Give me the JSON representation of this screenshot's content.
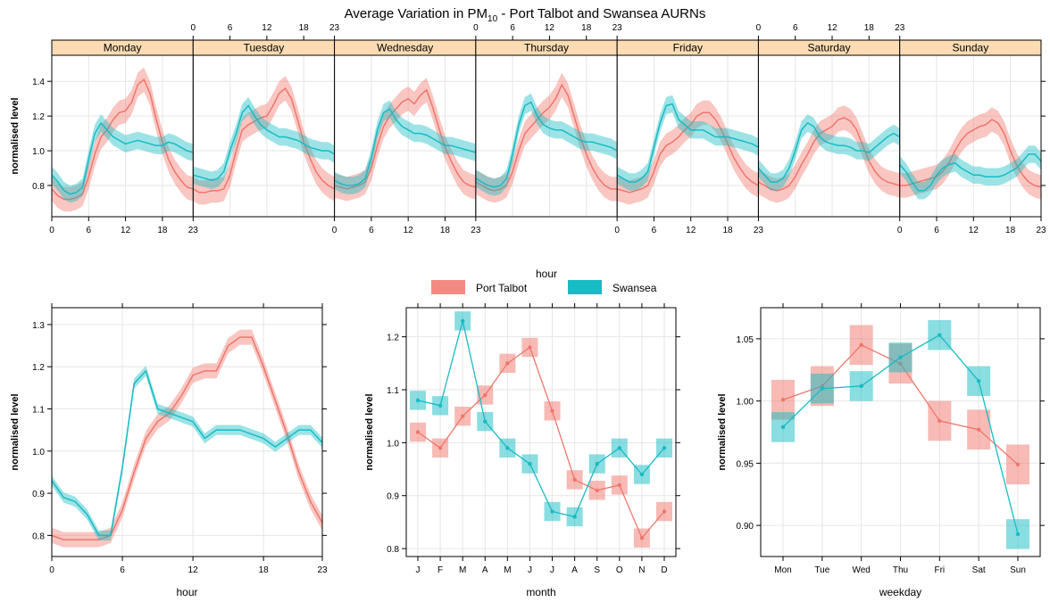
{
  "title": {
    "main": "Average Variation in PM",
    "sub": "10",
    "rest": " - Port Talbot and Swansea AURNs"
  },
  "colors": {
    "port_talbot": "#f0766c",
    "swansea": "#16bcc4",
    "strip": "#fddcb3"
  },
  "legend": {
    "items": [
      {
        "label": "Port Talbot",
        "color": "#f0766c"
      },
      {
        "label": "Swansea",
        "color": "#16bcc4"
      }
    ]
  },
  "chart_data": [
    {
      "type": "line",
      "panel": "hour-weekday",
      "title": "Average Variation in PM10 - Port Talbot and Swansea AURNs",
      "xlabel": "hour",
      "ylabel": "normalised level",
      "strips": [
        "Monday",
        "Tuesday",
        "Wednesday",
        "Thursday",
        "Friday",
        "Saturday",
        "Sunday"
      ],
      "xticks": [
        0,
        6,
        12,
        18,
        23
      ],
      "yticks": [
        0.8,
        1.0,
        1.2,
        1.4
      ],
      "ylim": [
        0.62,
        1.55
      ],
      "series": [
        {
          "name": "Port Talbot",
          "ci": 0.07,
          "values": [
            [
              0.78,
              0.74,
              0.72,
              0.72,
              0.73,
              0.75,
              0.85,
              0.98,
              1.08,
              1.12,
              1.18,
              1.22,
              1.23,
              1.28,
              1.38,
              1.41,
              1.33,
              1.18,
              1.05,
              0.95,
              0.88,
              0.83,
              0.79,
              0.78
            ],
            [
              0.78,
              0.76,
              0.76,
              0.77,
              0.77,
              0.78,
              0.86,
              1.0,
              1.12,
              1.15,
              1.17,
              1.19,
              1.2,
              1.26,
              1.33,
              1.36,
              1.3,
              1.18,
              1.05,
              0.96,
              0.88,
              0.83,
              0.8,
              0.78
            ],
            [
              0.8,
              0.79,
              0.78,
              0.79,
              0.8,
              0.82,
              0.9,
              1.03,
              1.14,
              1.2,
              1.24,
              1.28,
              1.3,
              1.27,
              1.32,
              1.35,
              1.25,
              1.13,
              1.02,
              0.94,
              0.87,
              0.82,
              0.8,
              0.79
            ],
            [
              0.82,
              0.8,
              0.78,
              0.77,
              0.78,
              0.8,
              0.88,
              1.0,
              1.1,
              1.14,
              1.18,
              1.22,
              1.25,
              1.3,
              1.38,
              1.32,
              1.2,
              1.08,
              0.98,
              0.9,
              0.84,
              0.8,
              0.78,
              0.78
            ],
            [
              0.78,
              0.77,
              0.76,
              0.77,
              0.78,
              0.8,
              0.88,
              0.98,
              1.03,
              1.05,
              1.08,
              1.12,
              1.15,
              1.2,
              1.22,
              1.22,
              1.18,
              1.12,
              1.04,
              0.96,
              0.9,
              0.85,
              0.82,
              0.8
            ],
            [
              0.82,
              0.8,
              0.78,
              0.77,
              0.78,
              0.8,
              0.85,
              0.92,
              0.98,
              1.05,
              1.1,
              1.12,
              1.14,
              1.18,
              1.19,
              1.17,
              1.12,
              1.03,
              0.94,
              0.88,
              0.84,
              0.82,
              0.81,
              0.8
            ],
            [
              0.8,
              0.8,
              0.81,
              0.82,
              0.83,
              0.84,
              0.85,
              0.88,
              0.93,
              1.0,
              1.06,
              1.1,
              1.12,
              1.14,
              1.15,
              1.18,
              1.16,
              1.1,
              1.0,
              0.92,
              0.86,
              0.82,
              0.8,
              0.79
            ]
          ]
        },
        {
          "name": "Swansea",
          "ci": 0.05,
          "values": [
            [
              0.86,
              0.82,
              0.77,
              0.75,
              0.76,
              0.79,
              0.95,
              1.1,
              1.16,
              1.12,
              1.08,
              1.06,
              1.04,
              1.05,
              1.06,
              1.05,
              1.04,
              1.03,
              1.03,
              1.05,
              1.04,
              1.02,
              1.0,
              0.99
            ],
            [
              0.86,
              0.85,
              0.84,
              0.83,
              0.84,
              0.88,
              1.0,
              1.1,
              1.22,
              1.26,
              1.2,
              1.15,
              1.12,
              1.1,
              1.08,
              1.08,
              1.07,
              1.06,
              1.04,
              1.02,
              1.01,
              1.0,
              1.0,
              0.98
            ],
            [
              0.83,
              0.81,
              0.8,
              0.8,
              0.81,
              0.84,
              0.96,
              1.12,
              1.22,
              1.24,
              1.18,
              1.14,
              1.12,
              1.1,
              1.1,
              1.09,
              1.07,
              1.05,
              1.03,
              1.03,
              1.02,
              1.01,
              1.0,
              0.99
            ],
            [
              0.84,
              0.82,
              0.8,
              0.79,
              0.8,
              0.84,
              0.98,
              1.15,
              1.26,
              1.28,
              1.2,
              1.15,
              1.13,
              1.12,
              1.12,
              1.1,
              1.08,
              1.06,
              1.05,
              1.05,
              1.04,
              1.03,
              1.02,
              1.0
            ],
            [
              0.86,
              0.84,
              0.82,
              0.82,
              0.84,
              0.88,
              1.02,
              1.16,
              1.26,
              1.27,
              1.18,
              1.15,
              1.12,
              1.12,
              1.12,
              1.1,
              1.08,
              1.08,
              1.08,
              1.07,
              1.06,
              1.05,
              1.04,
              1.02
            ],
            [
              0.9,
              0.86,
              0.82,
              0.82,
              0.84,
              0.9,
              1.0,
              1.12,
              1.16,
              1.14,
              1.08,
              1.05,
              1.04,
              1.03,
              1.03,
              1.02,
              1.0,
              1.0,
              0.99,
              1.02,
              1.05,
              1.08,
              1.1,
              1.08
            ],
            [
              0.92,
              0.88,
              0.82,
              0.77,
              0.77,
              0.8,
              0.86,
              0.9,
              0.92,
              0.93,
              0.9,
              0.88,
              0.86,
              0.86,
              0.85,
              0.85,
              0.85,
              0.86,
              0.88,
              0.9,
              0.94,
              0.98,
              0.98,
              0.94
            ]
          ]
        }
      ]
    },
    {
      "type": "line",
      "panel": "hour",
      "xlabel": "hour",
      "ylabel": "normalised level",
      "xticks": [
        0,
        6,
        12,
        18,
        23
      ],
      "yticks": [
        0.8,
        0.9,
        1.0,
        1.1,
        1.2,
        1.3
      ],
      "ylim": [
        0.75,
        1.34
      ],
      "series": [
        {
          "name": "Port Talbot",
          "ci": 0.018,
          "values": [
            0.8,
            0.79,
            0.79,
            0.79,
            0.79,
            0.8,
            0.86,
            0.95,
            1.03,
            1.07,
            1.09,
            1.13,
            1.18,
            1.19,
            1.19,
            1.25,
            1.27,
            1.27,
            1.2,
            1.12,
            1.04,
            0.95,
            0.88,
            0.83
          ]
        },
        {
          "name": "Swansea",
          "ci": 0.012,
          "values": [
            0.93,
            0.89,
            0.88,
            0.85,
            0.8,
            0.8,
            0.96,
            1.16,
            1.19,
            1.1,
            1.09,
            1.08,
            1.07,
            1.03,
            1.05,
            1.05,
            1.05,
            1.04,
            1.03,
            1.01,
            1.03,
            1.05,
            1.05,
            1.02
          ]
        }
      ]
    },
    {
      "type": "line",
      "panel": "month",
      "xlabel": "month",
      "ylabel": "normalised level",
      "categories": [
        "J",
        "F",
        "M",
        "A",
        "M",
        "J",
        "J",
        "A",
        "S",
        "O",
        "N",
        "D"
      ],
      "yticks": [
        0.8,
        0.9,
        1.0,
        1.1,
        1.2
      ],
      "ylim": [
        0.785,
        1.255
      ],
      "series": [
        {
          "name": "Port Talbot",
          "ci": 0.018,
          "values": [
            1.02,
            0.99,
            1.05,
            1.09,
            1.15,
            1.18,
            1.06,
            0.93,
            0.91,
            0.92,
            0.82,
            0.87
          ]
        },
        {
          "name": "Swansea",
          "ci": 0.018,
          "values": [
            1.08,
            1.07,
            1.23,
            1.04,
            0.99,
            0.96,
            0.87,
            0.86,
            0.96,
            0.99,
            0.94,
            0.99
          ]
        }
      ]
    },
    {
      "type": "line",
      "panel": "weekday",
      "xlabel": "weekday",
      "ylabel": "normalised level",
      "categories": [
        "Mon",
        "Tue",
        "Wed",
        "Thu",
        "Fri",
        "Sat",
        "Sun"
      ],
      "yticks": [
        0.9,
        0.95,
        1.0,
        1.05
      ],
      "ylim": [
        0.875,
        1.075
      ],
      "series": [
        {
          "name": "Port Talbot",
          "ci": 0.016,
          "values": [
            1.001,
            1.012,
            1.045,
            1.03,
            0.984,
            0.977,
            0.949
          ]
        },
        {
          "name": "Swansea",
          "ci": 0.012,
          "values": [
            0.979,
            1.01,
            1.012,
            1.035,
            1.053,
            1.016,
            0.893
          ]
        }
      ]
    }
  ]
}
